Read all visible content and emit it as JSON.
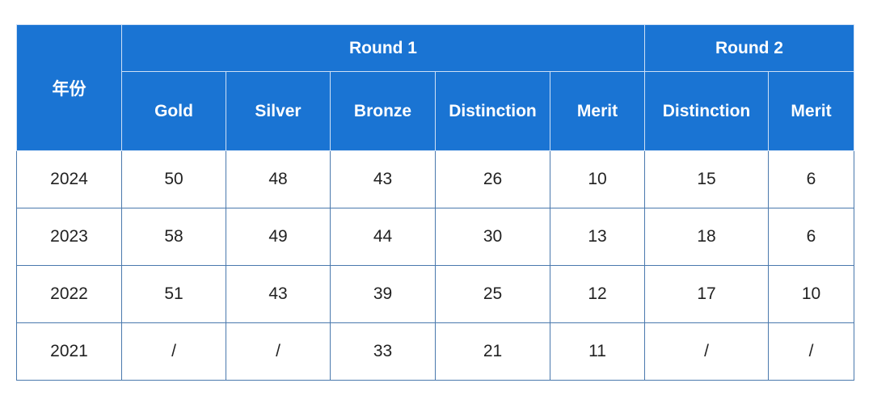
{
  "table": {
    "year_header": "年份",
    "rounds": [
      {
        "label": "Round 1",
        "span": 5
      },
      {
        "label": "Round 2",
        "span": 2
      }
    ],
    "columns": [
      "Gold",
      "Silver",
      "Bronze",
      "Distinction",
      "Merit",
      "Distinction",
      "Merit"
    ],
    "rows": [
      [
        "2024",
        50,
        48,
        43,
        26,
        10,
        15,
        6
      ],
      [
        "2023",
        58,
        49,
        44,
        30,
        13,
        18,
        6
      ],
      [
        "2022",
        51,
        43,
        39,
        25,
        12,
        17,
        10
      ],
      [
        "2021",
        "/",
        "/",
        33,
        21,
        11,
        "/",
        "/"
      ]
    ]
  }
}
